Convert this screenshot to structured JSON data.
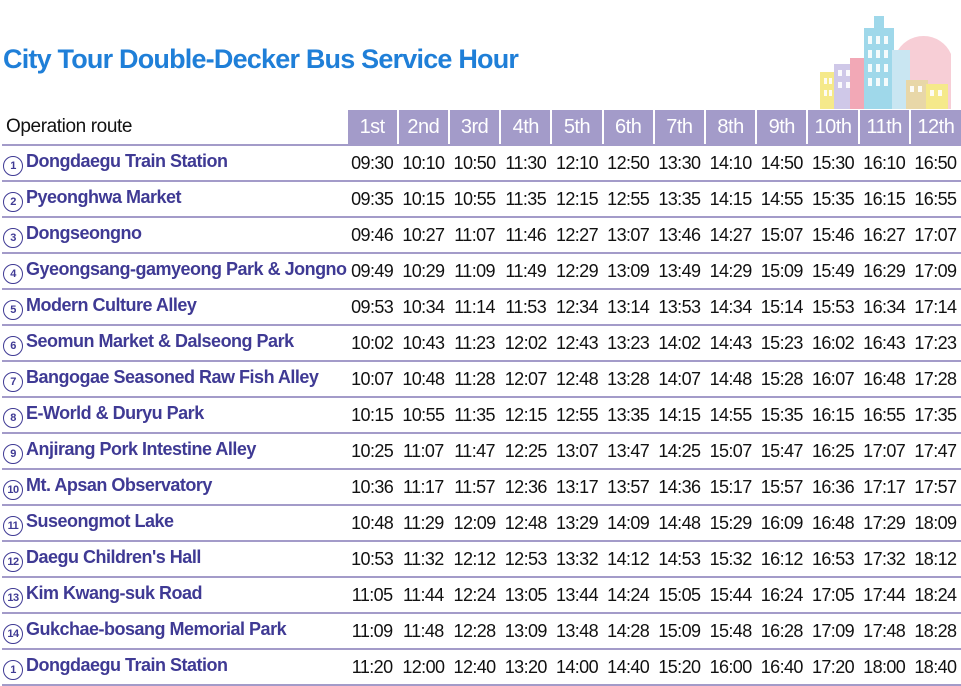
{
  "title": "City Tour Double-Decker Bus Service Hour",
  "colors": {
    "title": "#1f7fd8",
    "header_bg": "#a39bc9",
    "stop_text": "#3f3a94"
  },
  "table": {
    "route_header": "Operation route",
    "trips": [
      "1st",
      "2nd",
      "3rd",
      "4th",
      "5th",
      "6th",
      "7th",
      "8th",
      "9th",
      "10th",
      "11th",
      "12th"
    ],
    "rows": [
      {
        "num": "1",
        "name": "Dongdaegu Train Station",
        "times": [
          "09:30",
          "10:10",
          "10:50",
          "11:30",
          "12:10",
          "12:50",
          "13:30",
          "14:10",
          "14:50",
          "15:30",
          "16:10",
          "16:50"
        ]
      },
      {
        "num": "2",
        "name": "Pyeonghwa Market",
        "times": [
          "09:35",
          "10:15",
          "10:55",
          "11:35",
          "12:15",
          "12:55",
          "13:35",
          "14:15",
          "14:55",
          "15:35",
          "16:15",
          "16:55"
        ]
      },
      {
        "num": "3",
        "name": "Dongseongno",
        "times": [
          "09:46",
          "10:27",
          "11:07",
          "11:46",
          "12:27",
          "13:07",
          "13:46",
          "14:27",
          "15:07",
          "15:46",
          "16:27",
          "17:07"
        ]
      },
      {
        "num": "4",
        "name": "Gyeongsang-gamyeong Park & Jongno",
        "times": [
          "09:49",
          "10:29",
          "11:09",
          "11:49",
          "12:29",
          "13:09",
          "13:49",
          "14:29",
          "15:09",
          "15:49",
          "16:29",
          "17:09"
        ]
      },
      {
        "num": "5",
        "name": "Modern Culture Alley",
        "times": [
          "09:53",
          "10:34",
          "11:14",
          "11:53",
          "12:34",
          "13:14",
          "13:53",
          "14:34",
          "15:14",
          "15:53",
          "16:34",
          "17:14"
        ]
      },
      {
        "num": "6",
        "name": "Seomun Market & Dalseong Park",
        "times": [
          "10:02",
          "10:43",
          "11:23",
          "12:02",
          "12:43",
          "13:23",
          "14:02",
          "14:43",
          "15:23",
          "16:02",
          "16:43",
          "17:23"
        ]
      },
      {
        "num": "7",
        "name": "Bangogae Seasoned Raw Fish Alley",
        "times": [
          "10:07",
          "10:48",
          "11:28",
          "12:07",
          "12:48",
          "13:28",
          "14:07",
          "14:48",
          "15:28",
          "16:07",
          "16:48",
          "17:28"
        ]
      },
      {
        "num": "8",
        "name": "E-World & Duryu Park",
        "times": [
          "10:15",
          "10:55",
          "11:35",
          "12:15",
          "12:55",
          "13:35",
          "14:15",
          "14:55",
          "15:35",
          "16:15",
          "16:55",
          "17:35"
        ]
      },
      {
        "num": "9",
        "name": "Anjirang Pork Intestine Alley",
        "times": [
          "10:25",
          "11:07",
          "11:47",
          "12:25",
          "13:07",
          "13:47",
          "14:25",
          "15:07",
          "15:47",
          "16:25",
          "17:07",
          "17:47"
        ]
      },
      {
        "num": "10",
        "name": "Mt. Apsan Observatory",
        "times": [
          "10:36",
          "11:17",
          "11:57",
          "12:36",
          "13:17",
          "13:57",
          "14:36",
          "15:17",
          "15:57",
          "16:36",
          "17:17",
          "17:57"
        ]
      },
      {
        "num": "11",
        "name": "Suseongmot Lake",
        "times": [
          "10:48",
          "11:29",
          "12:09",
          "12:48",
          "13:29",
          "14:09",
          "14:48",
          "15:29",
          "16:09",
          "16:48",
          "17:29",
          "18:09"
        ]
      },
      {
        "num": "12",
        "name": "Daegu Children's Hall",
        "times": [
          "10:53",
          "11:32",
          "12:12",
          "12:53",
          "13:32",
          "14:12",
          "14:53",
          "15:32",
          "16:12",
          "16:53",
          "17:32",
          "18:12"
        ]
      },
      {
        "num": "13",
        "name": "Kim Kwang-suk Road",
        "times": [
          "11:05",
          "11:44",
          "12:24",
          "13:05",
          "13:44",
          "14:24",
          "15:05",
          "15:44",
          "16:24",
          "17:05",
          "17:44",
          "18:24"
        ]
      },
      {
        "num": "14",
        "name": "Gukchae-bosang Memorial Park",
        "times": [
          "11:09",
          "11:48",
          "12:28",
          "13:09",
          "13:48",
          "14:28",
          "15:09",
          "15:48",
          "16:28",
          "17:09",
          "17:48",
          "18:28"
        ]
      },
      {
        "num": "1",
        "name": "Dongdaegu Train Station",
        "times": [
          "11:20",
          "12:00",
          "12:40",
          "13:20",
          "14:00",
          "14:40",
          "15:20",
          "16:00",
          "16:40",
          "17:20",
          "18:00",
          "18:40"
        ]
      }
    ]
  }
}
